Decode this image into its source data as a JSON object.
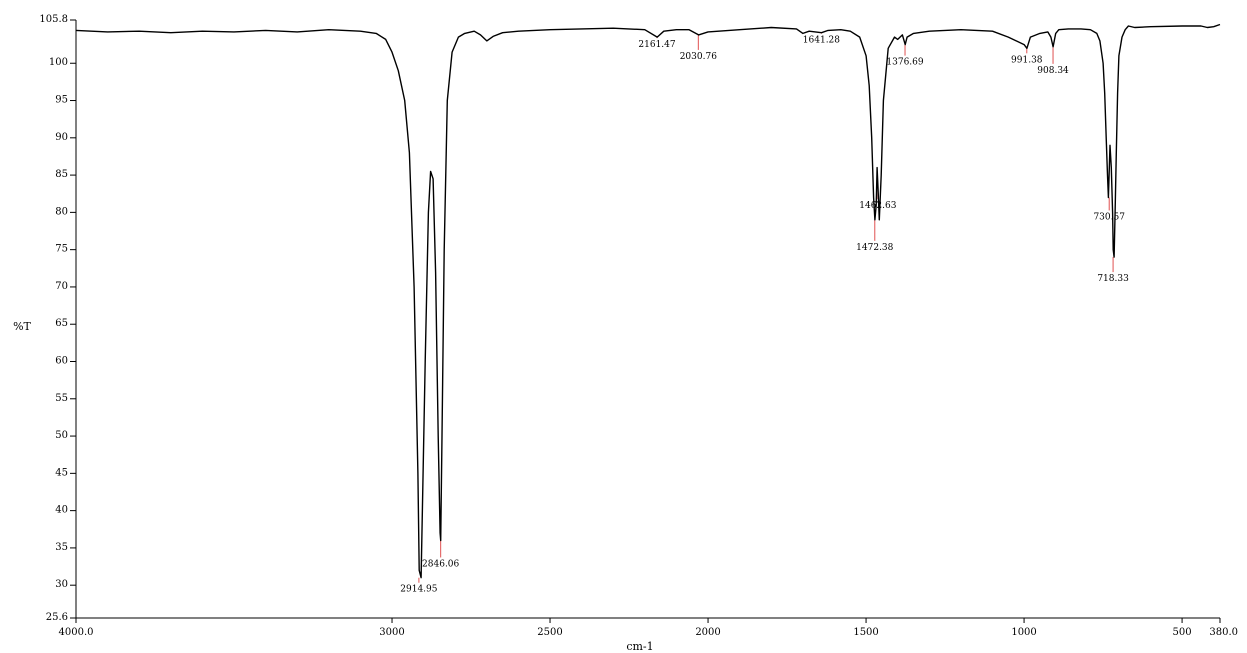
{
  "chart_data": {
    "type": "line",
    "title": "",
    "xlabel": "cm-1",
    "ylabel": "%T",
    "xlim": [
      4000.0,
      380.0
    ],
    "ylim": [
      25.6,
      105.8
    ],
    "x_reversed": true,
    "grid": false,
    "line_color": "#000000",
    "peak_marker_color": "#e05050",
    "x_ticks": [
      {
        "value": 4000,
        "label": "4000.0"
      },
      {
        "value": 3000,
        "label": "3000"
      },
      {
        "value": 2500,
        "label": "2500"
      },
      {
        "value": 2000,
        "label": "2000"
      },
      {
        "value": 1500,
        "label": "1500"
      },
      {
        "value": 1000,
        "label": "1000"
      },
      {
        "value": 500,
        "label": "500"
      },
      {
        "value": 380,
        "label": "380.0"
      }
    ],
    "y_ticks": [
      {
        "value": 25.6,
        "label": "25.6"
      },
      {
        "value": 30,
        "label": "30"
      },
      {
        "value": 35,
        "label": "35"
      },
      {
        "value": 40,
        "label": "40"
      },
      {
        "value": 45,
        "label": "45"
      },
      {
        "value": 50,
        "label": "50"
      },
      {
        "value": 55,
        "label": "55"
      },
      {
        "value": 60,
        "label": "60"
      },
      {
        "value": 65,
        "label": "65"
      },
      {
        "value": 70,
        "label": "70"
      },
      {
        "value": 75,
        "label": "75"
      },
      {
        "value": 80,
        "label": "80"
      },
      {
        "value": 85,
        "label": "85"
      },
      {
        "value": 90,
        "label": "90"
      },
      {
        "value": 95,
        "label": "95"
      },
      {
        "value": 100,
        "label": "100"
      },
      {
        "value": 105.8,
        "label": "105.8"
      }
    ],
    "spectrum": {
      "x": [
        4000,
        3900,
        3800,
        3700,
        3600,
        3500,
        3400,
        3300,
        3200,
        3100,
        3050,
        3020,
        3000,
        2980,
        2960,
        2945,
        2930,
        2918,
        2914,
        2908,
        2895,
        2885,
        2878,
        2870,
        2862,
        2854,
        2848,
        2846,
        2842,
        2835,
        2825,
        2810,
        2790,
        2770,
        2740,
        2720,
        2700,
        2680,
        2650,
        2600,
        2500,
        2400,
        2300,
        2200,
        2161,
        2140,
        2100,
        2060,
        2030,
        2000,
        1900,
        1800,
        1720,
        1700,
        1680,
        1641,
        1620,
        1580,
        1550,
        1520,
        1500,
        1490,
        1482,
        1476,
        1472,
        1468,
        1465,
        1462,
        1458,
        1452,
        1445,
        1430,
        1410,
        1400,
        1385,
        1376,
        1370,
        1350,
        1300,
        1200,
        1100,
        1050,
        1000,
        991,
        980,
        950,
        925,
        915,
        908,
        900,
        890,
        860,
        820,
        790,
        770,
        760,
        750,
        745,
        740,
        736,
        733,
        728,
        724,
        720,
        718,
        715,
        712,
        708,
        704,
        700,
        690,
        680,
        670,
        650,
        600,
        500,
        440,
        420,
        400,
        380
      ],
      "y": [
        104.4,
        104.2,
        104.3,
        104.1,
        104.3,
        104.2,
        104.4,
        104.2,
        104.5,
        104.3,
        104.0,
        103.2,
        101.5,
        99.0,
        95.0,
        88.0,
        70.0,
        45.0,
        32.0,
        31.0,
        60.0,
        80.0,
        85.5,
        84.5,
        72.0,
        50.0,
        37.0,
        36.0,
        50.0,
        75.0,
        95.0,
        101.5,
        103.5,
        104.0,
        104.3,
        103.8,
        103.0,
        103.6,
        104.1,
        104.3,
        104.5,
        104.6,
        104.7,
        104.5,
        103.5,
        104.3,
        104.5,
        104.5,
        103.8,
        104.2,
        104.5,
        104.8,
        104.6,
        104.0,
        104.3,
        104.1,
        104.4,
        104.5,
        104.3,
        103.5,
        101.0,
        97.0,
        90.0,
        82.0,
        79.0,
        81.0,
        86.0,
        83.0,
        79.0,
        85.0,
        95.0,
        102.0,
        103.5,
        103.2,
        103.8,
        102.5,
        103.5,
        104.0,
        104.3,
        104.5,
        104.3,
        103.5,
        102.5,
        102.0,
        103.5,
        104.0,
        104.2,
        103.5,
        102.2,
        104.0,
        104.5,
        104.6,
        104.6,
        104.5,
        104.0,
        103.0,
        100.0,
        96.0,
        90.0,
        85.0,
        82.0,
        89.0,
        86.0,
        80.0,
        75.0,
        74.0,
        80.0,
        88.0,
        96.0,
        101.0,
        103.5,
        104.5,
        105.0,
        104.8,
        104.9,
        105.0,
        105.0,
        104.8,
        104.9,
        105.2
      ]
    },
    "peaks": [
      {
        "x": 2914.95,
        "label": "2914.95",
        "y": 31.0,
        "label_pos": "below"
      },
      {
        "x": 2846.06,
        "label": "2846.06",
        "y": 36.0,
        "label_pos": "below"
      },
      {
        "x": 2161.47,
        "label": "2161.47",
        "y": 103.5,
        "label_pos": "below"
      },
      {
        "x": 2030.76,
        "label": "2030.76",
        "y": 103.8,
        "label_pos": "below"
      },
      {
        "x": 1641.28,
        "label": "1641.28",
        "y": 104.1,
        "label_pos": "below"
      },
      {
        "x": 1472.38,
        "label": "1472.38",
        "y": 79.0,
        "label_pos": "below"
      },
      {
        "x": 1462.63,
        "label": "1462.63",
        "y": 83.0,
        "label_pos": "below"
      },
      {
        "x": 1376.69,
        "label": "1376.69",
        "y": 102.5,
        "label_pos": "below"
      },
      {
        "x": 991.38,
        "label": "991.38",
        "y": 102.0,
        "label_pos": "below"
      },
      {
        "x": 908.34,
        "label": "908.34",
        "y": 102.2,
        "label_pos": "below"
      },
      {
        "x": 730.57,
        "label": "730.57",
        "y": 82.0,
        "label_pos": "below"
      },
      {
        "x": 718.33,
        "label": "718.33",
        "y": 74.0,
        "label_pos": "below"
      }
    ]
  }
}
